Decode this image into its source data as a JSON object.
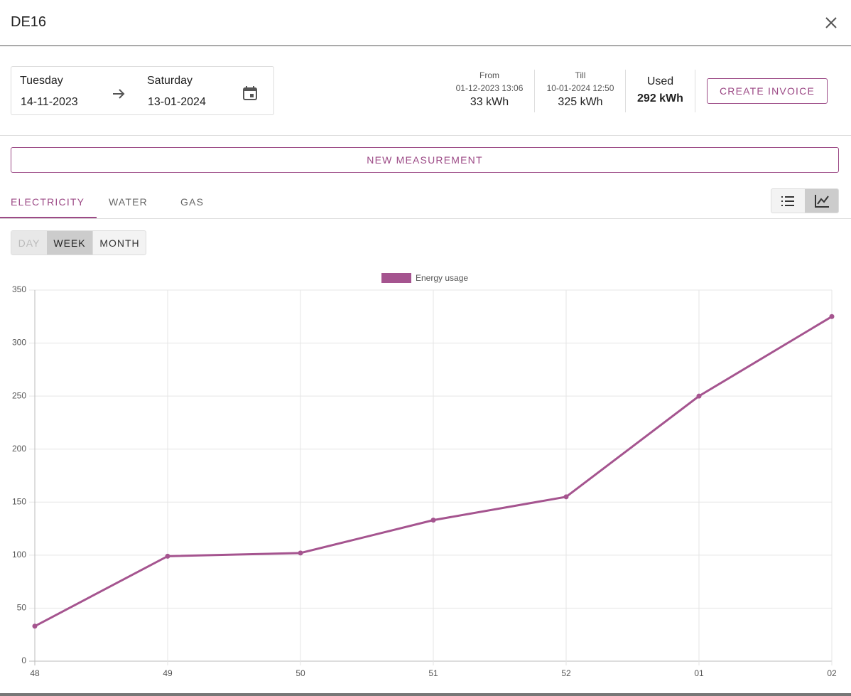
{
  "header": {
    "title": "DE16"
  },
  "period": {
    "from_day": "Tuesday",
    "from_date": "14-11-2023",
    "till_day": "Saturday",
    "till_date": "13-01-2024"
  },
  "stats": {
    "from": {
      "label": "From",
      "time": "01-12-2023 13:06",
      "value": "33 kWh"
    },
    "till": {
      "label": "Till",
      "time": "10-01-2024 12:50",
      "value": "325 kWh"
    },
    "used": {
      "label": "Used",
      "value": "292 kWh"
    }
  },
  "buttons": {
    "create_invoice": "CREATE INVOICE",
    "new_measurement": "NEW MEASUREMENT"
  },
  "tabs": [
    "ELECTRICITY",
    "WATER",
    "GAS"
  ],
  "granularity": [
    "DAY",
    "WEEK",
    "MONTH"
  ],
  "chart_data": {
    "type": "line",
    "categories": [
      "48",
      "49",
      "50",
      "51",
      "52",
      "01",
      "02"
    ],
    "series": [
      {
        "name": "Energy usage",
        "color": "#a5548f",
        "values": [
          33,
          99,
          102,
          133,
          155,
          250,
          325
        ]
      }
    ],
    "ylim": [
      0,
      350
    ],
    "yticks": [
      0,
      50,
      100,
      150,
      200,
      250,
      300,
      350
    ],
    "grid": true,
    "legend": "top"
  }
}
